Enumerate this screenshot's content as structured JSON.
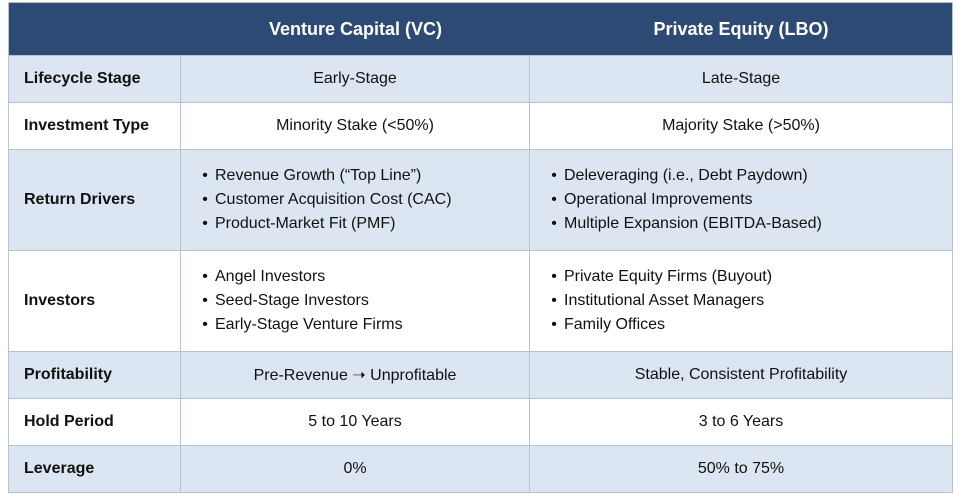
{
  "header": {
    "col0": "",
    "col1": "Venture Capital (VC)",
    "col2": "Private Equity (LBO)"
  },
  "rows": [
    {
      "label": "Lifecycle Stage",
      "vc": "Early-Stage",
      "pe": "Late-Stage"
    },
    {
      "label": "Investment Type",
      "vc": "Minority Stake (<50%)",
      "pe": "Majority Stake (>50%)"
    },
    {
      "label": "Return Drivers",
      "vc_items": [
        "Revenue Growth (“Top Line”)",
        "Customer Acquisition Cost (CAC)",
        "Product-Market Fit (PMF)"
      ],
      "pe_items": [
        "Deleveraging (i.e., Debt Paydown)",
        "Operational Improvements",
        "Multiple Expansion (EBITDA-Based)"
      ]
    },
    {
      "label": "Investors",
      "vc_items": [
        "Angel Investors",
        "Seed-Stage Investors",
        "Early-Stage Venture Firms"
      ],
      "pe_items": [
        "Private Equity Firms (Buyout)",
        "Institutional Asset Managers",
        "Family Offices"
      ]
    },
    {
      "label": "Profitability",
      "vc": "Pre-Revenue ➝ Unprofitable",
      "pe": "Stable, Consistent Profitability"
    },
    {
      "label": "Hold Period",
      "vc": "5 to 10 Years",
      "pe": "3 to 6 Years"
    },
    {
      "label": "Leverage",
      "vc": "0%",
      "pe": "50% to 75%"
    }
  ],
  "bullet_glyph": "•",
  "colors": {
    "header_bg": "#2c4a73",
    "row_shade": "#dbe6f2",
    "row_plain": "#ffffff",
    "border": "#b8c2cf"
  }
}
